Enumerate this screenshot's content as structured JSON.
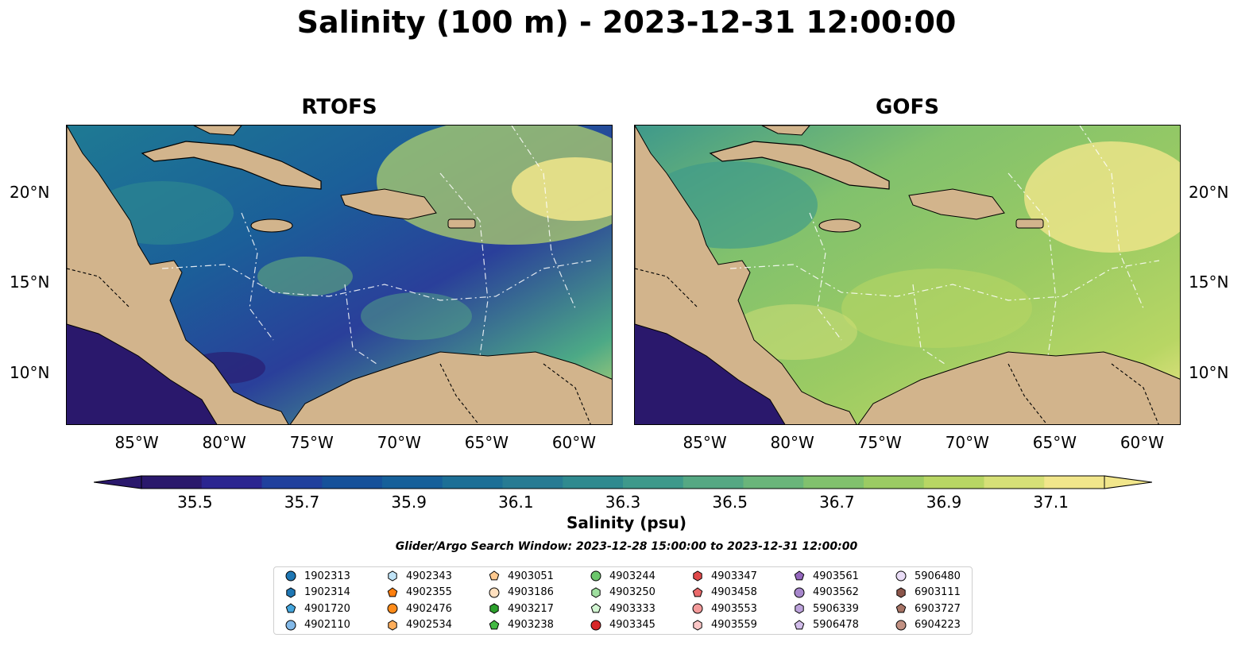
{
  "title": "Salinity (100 m) - 2023-12-31 12:00:00",
  "panels": [
    {
      "id": "rtofs",
      "title": "RTOFS"
    },
    {
      "id": "gofs",
      "title": "GOFS"
    }
  ],
  "axes": {
    "lon_ticks": [
      "85°W",
      "80°W",
      "75°W",
      "70°W",
      "65°W",
      "60°W"
    ],
    "lat_ticks": [
      "20°N",
      "15°N",
      "10°N"
    ]
  },
  "colorbar": {
    "label": "Salinity (psu)",
    "ticks": [
      "35.5",
      "35.7",
      "35.9",
      "36.1",
      "36.3",
      "36.5",
      "36.7",
      "36.9",
      "37.1"
    ],
    "range": [
      35.4,
      37.2
    ],
    "colors": [
      "#2a186c",
      "#2b2590",
      "#20409d",
      "#16519a",
      "#16609a",
      "#1c6f96",
      "#277b93",
      "#2f8a8f",
      "#3e998b",
      "#55a883",
      "#6ab57a",
      "#81c16d",
      "#9bcb63",
      "#b8d664",
      "#d6e077",
      "#f1e68b"
    ]
  },
  "search_window": "Glider/Argo Search Window: 2023-12-28 15:00:00 to 2023-12-31 12:00:00",
  "legend": [
    {
      "id": "1902313",
      "marker": "circle",
      "color": "#1f77b4"
    },
    {
      "id": "1902314",
      "marker": "hexagon",
      "color": "#1f77b4"
    },
    {
      "id": "4901720",
      "marker": "pentagon",
      "color": "#45a6dd"
    },
    {
      "id": "4902110",
      "marker": "circle",
      "color": "#83b9e8"
    },
    {
      "id": "4902343",
      "marker": "hexagon",
      "color": "#bfe3f7"
    },
    {
      "id": "4902355",
      "marker": "pentagon",
      "color": "#ff7f0e"
    },
    {
      "id": "4902476",
      "marker": "circle",
      "color": "#ff8c1a"
    },
    {
      "id": "4902534",
      "marker": "hexagon",
      "color": "#ffae5b"
    },
    {
      "id": "4903051",
      "marker": "pentagon",
      "color": "#ffc98f"
    },
    {
      "id": "4903186",
      "marker": "circle",
      "color": "#ffe0bf"
    },
    {
      "id": "4903217",
      "marker": "hexagon",
      "color": "#2ca02c"
    },
    {
      "id": "4903238",
      "marker": "pentagon",
      "color": "#44b944"
    },
    {
      "id": "4903244",
      "marker": "circle",
      "color": "#6cc76c"
    },
    {
      "id": "4903250",
      "marker": "hexagon",
      "color": "#9fdf9f"
    },
    {
      "id": "4903333",
      "marker": "pentagon",
      "color": "#d2f5d2"
    },
    {
      "id": "4903345",
      "marker": "circle",
      "color": "#d62728"
    },
    {
      "id": "4903347",
      "marker": "hexagon",
      "color": "#e0494a"
    },
    {
      "id": "4903458",
      "marker": "pentagon",
      "color": "#ea6a6b"
    },
    {
      "id": "4903553",
      "marker": "circle",
      "color": "#f39a9a"
    },
    {
      "id": "4903559",
      "marker": "hexagon",
      "color": "#fbc7c7"
    },
    {
      "id": "4903561",
      "marker": "pentagon",
      "color": "#9467bd"
    },
    {
      "id": "4903562",
      "marker": "circle",
      "color": "#a787cc"
    },
    {
      "id": "5906339",
      "marker": "hexagon",
      "color": "#bda3dc"
    },
    {
      "id": "5906478",
      "marker": "pentagon",
      "color": "#d2bdea"
    },
    {
      "id": "5906480",
      "marker": "circle",
      "color": "#e9dcf6"
    },
    {
      "id": "6903111",
      "marker": "hexagon",
      "color": "#8c564b"
    },
    {
      "id": "6903727",
      "marker": "pentagon",
      "color": "#a77466"
    },
    {
      "id": "6904223",
      "marker": "circle",
      "color": "#c29183"
    }
  ]
}
